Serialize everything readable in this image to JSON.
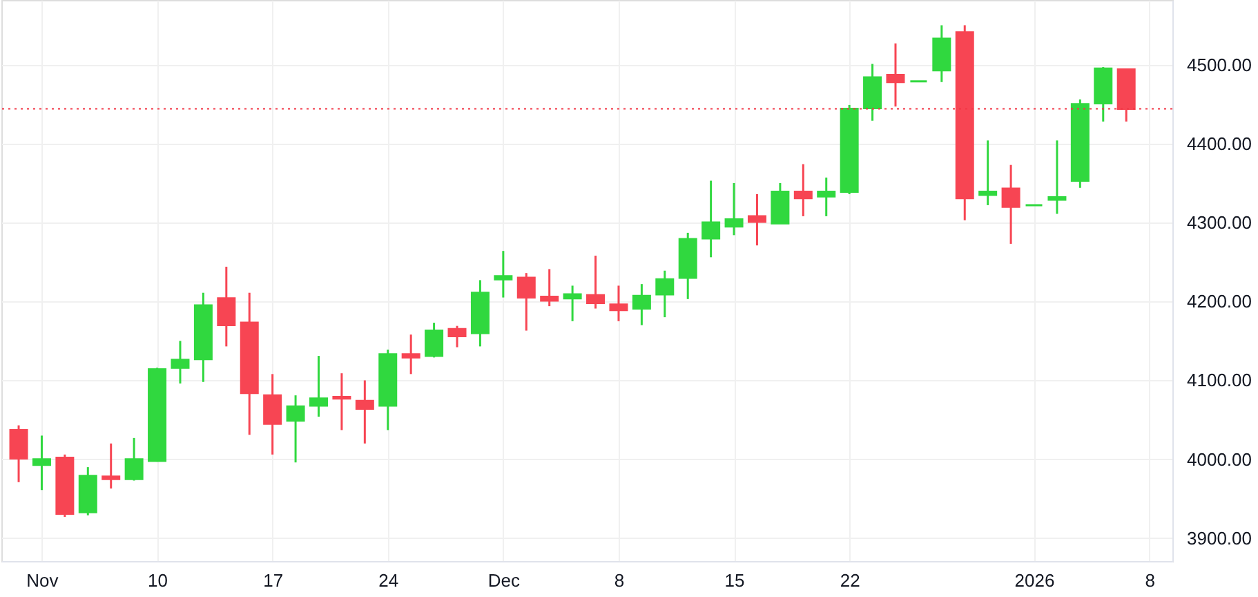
{
  "chart_data": {
    "type": "candlestick",
    "categories": [
      null,
      "Nov",
      null,
      null,
      null,
      null,
      "10",
      null,
      null,
      null,
      null,
      "17",
      null,
      null,
      null,
      null,
      "24",
      null,
      null,
      null,
      null,
      "Dec",
      null,
      null,
      null,
      null,
      "8",
      null,
      null,
      null,
      null,
      "15",
      null,
      null,
      null,
      null,
      "22",
      null,
      null,
      null,
      null,
      null,
      null,
      null,
      "2026",
      null,
      null,
      null,
      null,
      "8"
    ],
    "ohlc": [
      [
        4037,
        4043,
        3971,
        4001
      ],
      [
        3993,
        4030,
        3961,
        4000
      ],
      [
        4002,
        4006,
        3927,
        3931
      ],
      [
        3933,
        3990,
        3929,
        3979
      ],
      [
        3978,
        4020,
        3963,
        3975
      ],
      [
        3975,
        4027,
        3973,
        4000
      ],
      [
        3998,
        4116,
        3997,
        4114
      ],
      [
        4116,
        4150,
        4096,
        4126
      ],
      [
        4127,
        4211,
        4098,
        4195
      ],
      [
        4204,
        4244,
        4143,
        4170
      ],
      [
        4173,
        4211,
        4031,
        4084
      ],
      [
        4081,
        4108,
        4006,
        4045
      ],
      [
        4049,
        4081,
        3996,
        4067
      ],
      [
        4068,
        4131,
        4054,
        4077
      ],
      [
        4079,
        4109,
        4037,
        4077
      ],
      [
        4074,
        4100,
        4020,
        4064
      ],
      [
        4068,
        4139,
        4037,
        4133
      ],
      [
        4133,
        4158,
        4108,
        4129
      ],
      [
        4131,
        4173,
        4129,
        4163
      ],
      [
        4165,
        4169,
        4142,
        4156
      ],
      [
        4160,
        4227,
        4143,
        4211
      ],
      [
        4228,
        4264,
        4205,
        4232
      ],
      [
        4230,
        4236,
        4163,
        4205
      ],
      [
        4206,
        4241,
        4194,
        4201
      ],
      [
        4204,
        4220,
        4175,
        4209
      ],
      [
        4208,
        4258,
        4191,
        4198
      ],
      [
        4196,
        4220,
        4175,
        4189
      ],
      [
        4191,
        4222,
        4170,
        4207
      ],
      [
        4209,
        4239,
        4180,
        4228
      ],
      [
        4230,
        4287,
        4203,
        4279
      ],
      [
        4280,
        4353,
        4256,
        4300
      ],
      [
        4295,
        4350,
        4284,
        4304
      ],
      [
        4308,
        4336,
        4271,
        4301
      ],
      [
        4299,
        4350,
        4299,
        4339
      ],
      [
        4339,
        4374,
        4308,
        4331
      ],
      [
        4333,
        4357,
        4308,
        4339
      ],
      [
        4339,
        4449,
        4336,
        4444
      ],
      [
        4445,
        4501,
        4429,
        4484
      ],
      [
        4487,
        4527,
        4447,
        4478
      ],
      [
        4479,
        4479,
        4479,
        4479
      ],
      [
        4493,
        4550,
        4478,
        4533
      ],
      [
        4541,
        4550,
        4303,
        4331
      ],
      [
        4335,
        4404,
        4322,
        4339
      ],
      [
        4343,
        4373,
        4273,
        4320
      ],
      [
        4322,
        4322,
        4322,
        4322
      ],
      [
        4329,
        4404,
        4311,
        4332
      ],
      [
        4353,
        4456,
        4344,
        4450
      ],
      [
        4451,
        4497,
        4428,
        4495
      ],
      [
        4494,
        4495,
        4428,
        4444
      ],
      null
    ],
    "colors": [
      "#f74553",
      "#30d83f",
      "#f74553",
      "#30d83f",
      "#f74553",
      "#30d83f",
      "#30d83f",
      "#30d83f",
      "#30d83f",
      "#f74553",
      "#f74553",
      "#f74553",
      "#30d83f",
      "#30d83f",
      "#f74553",
      "#f74553",
      "#30d83f",
      "#f74553",
      "#30d83f",
      "#f74553",
      "#30d83f",
      "#30d83f",
      "#f74553",
      "#f74553",
      "#30d83f",
      "#f74553",
      "#f74553",
      "#30d83f",
      "#30d83f",
      "#30d83f",
      "#30d83f",
      "#30d83f",
      "#f74553",
      "#30d83f",
      "#f74553",
      "#30d83f",
      "#30d83f",
      "#30d83f",
      "#f74553",
      "#30d83f",
      "#30d83f",
      "#f74553",
      "#30d83f",
      "#f74553",
      "#30d83f",
      "#30d83f",
      "#30d83f",
      "#30d83f",
      "#f74553",
      null
    ],
    "ylim": [
      3871,
      4582
    ],
    "yticks": [
      {
        "value": 3900,
        "label": "3900.00"
      },
      {
        "value": 4000,
        "label": "4000.00"
      },
      {
        "value": 4100,
        "label": "4100.00"
      },
      {
        "value": 4200,
        "label": "4200.00"
      },
      {
        "value": 4300,
        "label": "4300.00"
      },
      {
        "value": 4400,
        "label": "4400.00"
      },
      {
        "value": 4500,
        "label": "4500.00"
      }
    ],
    "ref_lines": [
      {
        "axis": "y",
        "value": 4444,
        "label": null,
        "color": "#f23645",
        "line_style": "dotted"
      }
    ],
    "grid": true
  }
}
